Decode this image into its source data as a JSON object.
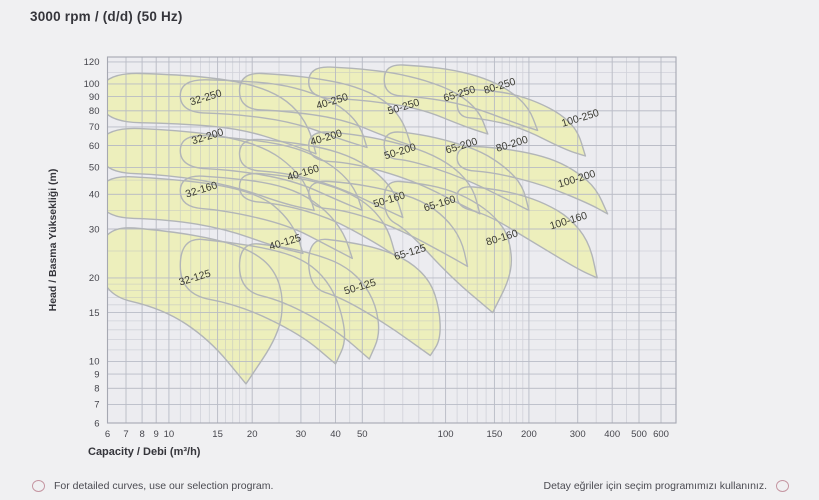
{
  "title": "3000 rpm / (d/d) (50 Hz)",
  "footer": {
    "left": "For detailed curves, use our selection program.",
    "right": "Detay eğriler için seçim programımızı kullanınız."
  },
  "chart_data": {
    "type": "area",
    "title": "3000 rpm / (d/d) (50 Hz)",
    "xlabel": "Capacity / Debi (m³/h)",
    "ylabel": "Head / Basma Yüksekliği (m)",
    "x_scale": "log",
    "y_scale": "log",
    "xlim": [
      6,
      680
    ],
    "ylim": [
      6,
      125
    ],
    "x_ticks": [
      6,
      7,
      8,
      9,
      10,
      15,
      20,
      30,
      40,
      50,
      100,
      150,
      200,
      300,
      400,
      500,
      600
    ],
    "y_ticks": [
      6,
      7,
      8,
      9,
      10,
      15,
      20,
      30,
      40,
      50,
      60,
      70,
      80,
      90,
      100,
      120
    ],
    "grid": true,
    "legend": "none",
    "colors": {
      "region_fill": "#edefbc",
      "region_stroke": "#b2b5b8",
      "grid_line": "#b6b8c3",
      "frame": "#a6a8b2",
      "label_text": "#3c3c34",
      "tick_text": "#45454c"
    },
    "label_rotation": -17,
    "regions": [
      {
        "name": "32-250",
        "label_at": [
          13.7,
          87
        ],
        "points": [
          [
            5.6,
            110
          ],
          [
            11,
            108
          ],
          [
            17,
            103
          ],
          [
            23,
            95
          ],
          [
            28,
            84
          ],
          [
            32,
            70
          ],
          [
            34,
            56
          ],
          [
            27,
            61
          ],
          [
            18,
            69
          ],
          [
            11,
            72
          ],
          [
            5.6,
            73
          ]
        ]
      },
      {
        "name": "32-200",
        "label_at": [
          13.9,
          63
        ],
        "points": [
          [
            5.6,
            70
          ],
          [
            11,
            68
          ],
          [
            17,
            64
          ],
          [
            23,
            58
          ],
          [
            28,
            50
          ],
          [
            31.5,
            43
          ],
          [
            33.5,
            35
          ],
          [
            26,
            37
          ],
          [
            17,
            43
          ],
          [
            10,
            47
          ],
          [
            5.6,
            48
          ]
        ]
      },
      {
        "name": "32-160",
        "label_at": [
          13.2,
          40.5
        ],
        "points": [
          [
            5.6,
            47
          ],
          [
            10,
            45.5
          ],
          [
            16,
            43
          ],
          [
            22,
            39
          ],
          [
            26,
            34
          ],
          [
            29,
            29
          ],
          [
            30.5,
            24.5
          ],
          [
            24,
            26
          ],
          [
            16,
            30
          ],
          [
            10,
            32.5
          ],
          [
            5.6,
            33
          ]
        ]
      },
      {
        "name": "32-125",
        "label_at": [
          12.5,
          19.5
        ],
        "points": [
          [
            5.6,
            31
          ],
          [
            10,
            29.5
          ],
          [
            15,
            27.5
          ],
          [
            20,
            25
          ],
          [
            24,
            21.5
          ],
          [
            26,
            17
          ],
          [
            25,
            12.5
          ],
          [
            19,
            8.3
          ],
          [
            14,
            12
          ],
          [
            9.5,
            15.5
          ],
          [
            5.6,
            17.5
          ]
        ]
      },
      {
        "name": "40-250",
        "label_at": [
          39.2,
          84.3
        ],
        "points": [
          [
            11,
            104
          ],
          [
            17,
            103
          ],
          [
            25,
            100
          ],
          [
            33,
            93
          ],
          [
            42,
            83
          ],
          [
            49,
            71
          ],
          [
            52,
            59
          ],
          [
            42,
            63
          ],
          [
            28,
            73
          ],
          [
            17,
            78
          ],
          [
            11,
            79
          ]
        ]
      },
      {
        "name": "40-200",
        "label_at": [
          37.3,
          62.4
        ],
        "points": [
          [
            11,
            66
          ],
          [
            17,
            64
          ],
          [
            25,
            61
          ],
          [
            33,
            56
          ],
          [
            41,
            49
          ],
          [
            47,
            42
          ],
          [
            50,
            35
          ],
          [
            41,
            38
          ],
          [
            28,
            45
          ],
          [
            17,
            49
          ],
          [
            11,
            50
          ]
        ]
      },
      {
        "name": "40-160",
        "label_at": [
          30.8,
          46.6
        ],
        "points": [
          [
            11,
            47
          ],
          [
            16,
            46
          ],
          [
            23,
            44
          ],
          [
            30,
            40.5
          ],
          [
            37,
            35
          ],
          [
            43,
            29
          ],
          [
            46,
            23.5
          ],
          [
            38,
            26
          ],
          [
            27,
            31
          ],
          [
            16,
            35
          ],
          [
            11,
            36
          ]
        ]
      },
      {
        "name": "40-125",
        "label_at": [
          26.5,
          26.2
        ],
        "points": [
          [
            11,
            28
          ],
          [
            16,
            27
          ],
          [
            23,
            25.5
          ],
          [
            30,
            23.5
          ],
          [
            36,
            20.5
          ],
          [
            41,
            16.5
          ],
          [
            44,
            12
          ],
          [
            40,
            9.8
          ],
          [
            30,
            12.5
          ],
          [
            18,
            16
          ],
          [
            11,
            17.5
          ]
        ]
      },
      {
        "name": "50-250",
        "label_at": [
          71,
          80.6
        ],
        "points": [
          [
            18,
            110
          ],
          [
            26,
            108
          ],
          [
            36,
            104
          ],
          [
            47,
            98
          ],
          [
            60,
            88
          ],
          [
            70,
            74
          ],
          [
            75,
            60
          ],
          [
            62,
            64
          ],
          [
            42,
            75
          ],
          [
            26,
            80
          ],
          [
            18,
            81
          ]
        ]
      },
      {
        "name": "50-200",
        "label_at": [
          69,
          55.6
        ],
        "points": [
          [
            18,
            64
          ],
          [
            26,
            62
          ],
          [
            36,
            59
          ],
          [
            47,
            54
          ],
          [
            58,
            47
          ],
          [
            66,
            40
          ],
          [
            70,
            33
          ],
          [
            58,
            36
          ],
          [
            40,
            43
          ],
          [
            26,
            48
          ],
          [
            18,
            49
          ]
        ]
      },
      {
        "name": "50-160",
        "label_at": [
          63,
          37.3
        ],
        "points": [
          [
            18,
            48
          ],
          [
            25,
            47
          ],
          [
            34,
            44.5
          ],
          [
            44,
            41
          ],
          [
            54,
            36
          ],
          [
            62,
            30
          ],
          [
            66,
            24
          ],
          [
            55,
            27
          ],
          [
            38,
            33
          ],
          [
            25,
            37
          ],
          [
            18,
            38
          ]
        ]
      },
      {
        "name": "50-125",
        "label_at": [
          49.4,
          18.1
        ],
        "points": [
          [
            18,
            27
          ],
          [
            25,
            26
          ],
          [
            33,
            24.5
          ],
          [
            42,
            22.5
          ],
          [
            50,
            19.5
          ],
          [
            56,
            16
          ],
          [
            58,
            12.5
          ],
          [
            53,
            10.2
          ],
          [
            40,
            13
          ],
          [
            26,
            16.5
          ],
          [
            18,
            18
          ]
        ]
      },
      {
        "name": "65-250",
        "label_at": [
          113,
          89.8
        ],
        "points": [
          [
            32,
            116
          ],
          [
            46,
            114
          ],
          [
            64,
            110
          ],
          [
            85,
            103
          ],
          [
            110,
            93
          ],
          [
            132,
            80
          ],
          [
            142,
            66
          ],
          [
            118,
            70
          ],
          [
            80,
            82
          ],
          [
            48,
            88
          ],
          [
            32,
            89
          ]
        ]
      },
      {
        "name": "65-200",
        "label_at": [
          115,
          58.3
        ],
        "points": [
          [
            32,
            68
          ],
          [
            46,
            66
          ],
          [
            64,
            62
          ],
          [
            85,
            57
          ],
          [
            108,
            50
          ],
          [
            126,
            42
          ],
          [
            133,
            34
          ],
          [
            112,
            37
          ],
          [
            76,
            45
          ],
          [
            46,
            52
          ],
          [
            32,
            53
          ]
        ]
      },
      {
        "name": "65-160",
        "label_at": [
          95.9,
          36.1
        ],
        "points": [
          [
            32,
            45
          ],
          [
            45,
            44
          ],
          [
            62,
            41.5
          ],
          [
            82,
            38
          ],
          [
            100,
            33
          ],
          [
            114,
            27.5
          ],
          [
            120,
            22
          ],
          [
            103,
            24
          ],
          [
            68,
            30
          ],
          [
            44,
            35
          ],
          [
            32,
            36
          ]
        ]
      },
      {
        "name": "65-125",
        "label_at": [
          75,
          24.1
        ],
        "points": [
          [
            32,
            28
          ],
          [
            44,
            27
          ],
          [
            58,
            25.5
          ],
          [
            74,
            23
          ],
          [
            88,
            19.5
          ],
          [
            95,
            15.5
          ],
          [
            96,
            12
          ],
          [
            88,
            10.5
          ],
          [
            62,
            13.5
          ],
          [
            42,
            17
          ],
          [
            32,
            18.5
          ]
        ]
      },
      {
        "name": "80-250",
        "label_at": [
          158,
          95.8
        ],
        "points": [
          [
            60,
            118
          ],
          [
            82,
            116
          ],
          [
            108,
            112
          ],
          [
            138,
            105
          ],
          [
            170,
            95
          ],
          [
            200,
            82
          ],
          [
            215,
            68
          ],
          [
            180,
            72
          ],
          [
            120,
            84
          ],
          [
            80,
            90
          ],
          [
            60,
            91
          ]
        ]
      },
      {
        "name": "80-200",
        "label_at": [
          175,
          59.2
        ],
        "points": [
          [
            60,
            68
          ],
          [
            80,
            66
          ],
          [
            105,
            62
          ],
          [
            135,
            57
          ],
          [
            165,
            50
          ],
          [
            190,
            43
          ],
          [
            200,
            35
          ],
          [
            170,
            38
          ],
          [
            115,
            46
          ],
          [
            75,
            53
          ],
          [
            60,
            54
          ]
        ]
      },
      {
        "name": "80-160",
        "label_at": [
          161,
          27.2
        ],
        "points": [
          [
            60,
            45
          ],
          [
            78,
            44
          ],
          [
            100,
            42
          ],
          [
            126,
            38
          ],
          [
            152,
            33
          ],
          [
            170,
            28
          ],
          [
            175,
            21
          ],
          [
            148,
            15
          ],
          [
            105,
            20
          ],
          [
            72,
            30
          ],
          [
            60,
            33
          ]
        ]
      },
      {
        "name": "100-250",
        "label_at": [
          309,
          73.4
        ],
        "points": [
          [
            110,
            96
          ],
          [
            140,
            95
          ],
          [
            175,
            92
          ],
          [
            215,
            86
          ],
          [
            260,
            78
          ],
          [
            300,
            68
          ],
          [
            320,
            55
          ],
          [
            270,
            58
          ],
          [
            185,
            70
          ],
          [
            135,
            75
          ],
          [
            110,
            76
          ]
        ]
      },
      {
        "name": "100-200",
        "label_at": [
          300,
          44.3
        ],
        "points": [
          [
            110,
            60
          ],
          [
            150,
            59
          ],
          [
            200,
            56.5
          ],
          [
            250,
            53
          ],
          [
            300,
            48
          ],
          [
            350,
            42
          ],
          [
            385,
            34
          ],
          [
            330,
            37
          ],
          [
            230,
            43
          ],
          [
            150,
            48
          ],
          [
            110,
            49
          ]
        ]
      },
      {
        "name": "100-160",
        "label_at": [
          280,
          31.3
        ],
        "points": [
          [
            110,
            43
          ],
          [
            145,
            42
          ],
          [
            185,
            40
          ],
          [
            230,
            37
          ],
          [
            280,
            33
          ],
          [
            330,
            27
          ],
          [
            353,
            20
          ],
          [
            300,
            21.5
          ],
          [
            200,
            27.5
          ],
          [
            140,
            34
          ],
          [
            110,
            36
          ]
        ]
      }
    ]
  }
}
